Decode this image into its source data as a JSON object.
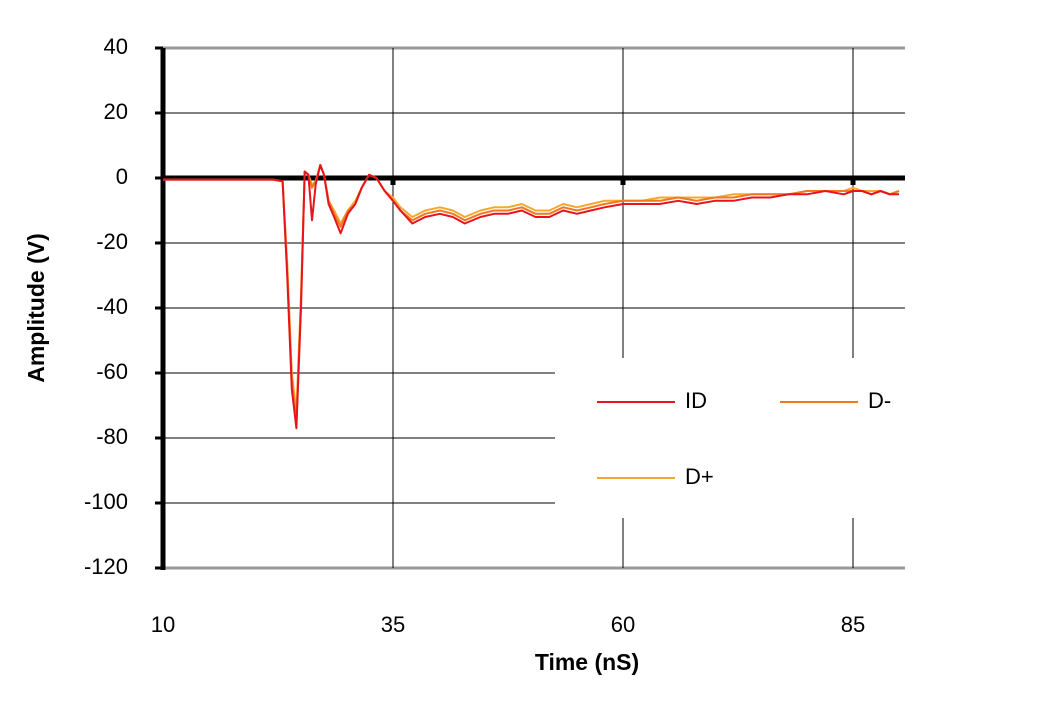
{
  "chart_data": {
    "type": "line",
    "xlabel": "Time (nS)",
    "ylabel": "Amplitude (V)",
    "xlim": [
      10,
      90
    ],
    "xticks": [
      10,
      35,
      60,
      85
    ],
    "ylim": [
      -120,
      40
    ],
    "yticks": [
      -120,
      -100,
      -80,
      -60,
      -40,
      -20,
      0,
      20,
      40
    ],
    "grid": true,
    "legend": "lower right",
    "x": [
      10,
      15,
      20,
      22,
      23,
      23.5,
      24,
      24.5,
      25,
      25.4,
      25.8,
      26.2,
      26.6,
      27.1,
      27.5,
      28,
      28.6,
      29.3,
      30.1,
      30.9,
      31.6,
      32.4,
      33.2,
      34.1,
      35,
      35.8,
      37.1,
      38.5,
      40.1,
      41.5,
      42.8,
      44.5,
      46,
      47.5,
      49,
      50.5,
      52,
      53.5,
      55,
      56.5,
      58,
      60,
      62,
      64,
      66,
      68,
      70,
      72,
      74,
      76,
      78,
      80,
      82,
      84,
      85,
      86,
      87,
      88,
      89,
      90
    ],
    "series": [
      {
        "name": "ID",
        "color": "#e8141c",
        "values": [
          -0.5,
          -0.5,
          -0.5,
          -0.5,
          -1,
          -30,
          -65,
          -77,
          -40,
          2,
          1,
          -13,
          -2,
          4,
          1,
          -8,
          -12,
          -17,
          -11,
          -8,
          -3,
          1,
          0,
          -4,
          -7,
          -10,
          -14,
          -12,
          -11,
          -12,
          -14,
          -12,
          -11,
          -11,
          -10,
          -12,
          -12,
          -10,
          -11,
          -10,
          -9,
          -8,
          -8,
          -8,
          -7,
          -8,
          -7,
          -7,
          -6,
          -6,
          -5,
          -5,
          -4,
          -5,
          -4,
          -4,
          -5,
          -4,
          -5,
          -5
        ]
      },
      {
        "name": "D-",
        "color": "#f07820",
        "values": [
          -0.5,
          -0.5,
          -0.5,
          -0.5,
          -1,
          -28,
          -62,
          -75,
          -38,
          2,
          1,
          -3,
          -1,
          4,
          1,
          -7,
          -11,
          -15,
          -10,
          -8,
          -3,
          1,
          0,
          -4,
          -7,
          -10,
          -13,
          -11,
          -10,
          -11,
          -13,
          -11,
          -10,
          -10,
          -9,
          -11,
          -11,
          -9,
          -10,
          -9,
          -8,
          -7,
          -7,
          -7,
          -6,
          -7,
          -6,
          -6,
          -5,
          -5,
          -5,
          -4,
          -4,
          -4,
          -4,
          -4,
          -5,
          -4,
          -5,
          -4
        ]
      },
      {
        "name": "D+",
        "color": "#f5a830",
        "values": [
          -0.5,
          -0.5,
          -0.5,
          -0.5,
          -1,
          -26,
          -60,
          -72,
          -36,
          2,
          1,
          -2,
          -1,
          4,
          1,
          -7,
          -10,
          -14,
          -10,
          -7,
          -3,
          1,
          0,
          -4,
          -6,
          -9,
          -12,
          -10,
          -9,
          -10,
          -12,
          -10,
          -9,
          -9,
          -8,
          -10,
          -10,
          -8,
          -9,
          -8,
          -7,
          -7,
          -7,
          -6,
          -6,
          -6,
          -6,
          -5,
          -5,
          -5,
          -5,
          -4,
          -4,
          -4,
          -3,
          -4,
          -4,
          -4,
          -5,
          -4
        ]
      }
    ]
  }
}
